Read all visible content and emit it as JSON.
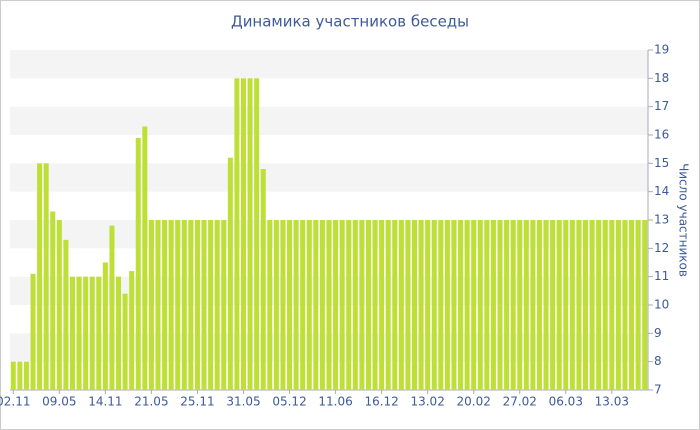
{
  "chart_data": {
    "type": "bar",
    "title": "Динамика участников беседы",
    "y_label": "Число участников",
    "color": "#bedf35",
    "categories": [
      "02.11",
      null,
      null,
      null,
      null,
      null,
      null,
      "09.05",
      null,
      null,
      null,
      null,
      null,
      null,
      "14.11",
      null,
      null,
      null,
      null,
      null,
      null,
      "21.05",
      null,
      null,
      null,
      null,
      null,
      null,
      "25.11",
      null,
      null,
      null,
      null,
      null,
      null,
      "31.05",
      null,
      null,
      null,
      null,
      null,
      null,
      "05.12",
      null,
      null,
      null,
      null,
      null,
      null,
      "11.06",
      null,
      null,
      null,
      null,
      null,
      null,
      "16.12",
      null,
      null,
      null,
      null,
      null,
      null,
      "13.02",
      null,
      null,
      null,
      null,
      null,
      null,
      "20.02",
      null,
      null,
      null,
      null,
      null,
      null,
      "27.02",
      null,
      null,
      null,
      null,
      null,
      null,
      "06.03",
      null,
      null,
      null,
      null,
      null,
      null,
      "13.03",
      null,
      null,
      null,
      null,
      null
    ],
    "values": [
      8,
      8,
      8,
      11.1,
      15,
      15,
      13.3,
      13,
      12.3,
      11,
      11,
      11,
      11,
      11,
      11.5,
      12.8,
      11,
      10.4,
      11.2,
      15.9,
      16.3,
      13,
      13,
      13,
      13,
      13,
      13,
      13,
      13,
      13,
      13,
      13,
      13,
      15.2,
      18,
      18,
      18,
      18,
      14.8,
      13,
      13,
      13,
      13,
      13,
      13,
      13,
      13,
      13,
      13,
      13,
      13,
      13,
      13,
      13,
      13,
      13,
      13,
      13,
      13,
      13,
      13,
      13,
      13,
      13,
      13,
      13,
      13,
      13,
      13,
      13,
      13,
      13,
      13,
      13,
      13,
      13,
      13,
      13,
      13,
      13,
      13,
      13,
      13,
      13,
      13,
      13,
      13,
      13,
      13,
      13,
      13,
      13,
      13,
      13,
      13,
      13,
      13
    ],
    "ylim": [
      7,
      19
    ],
    "yticks": [
      7,
      8,
      9,
      10,
      11,
      12,
      13,
      14,
      15,
      16,
      17,
      18,
      19
    ],
    "grid": true
  }
}
